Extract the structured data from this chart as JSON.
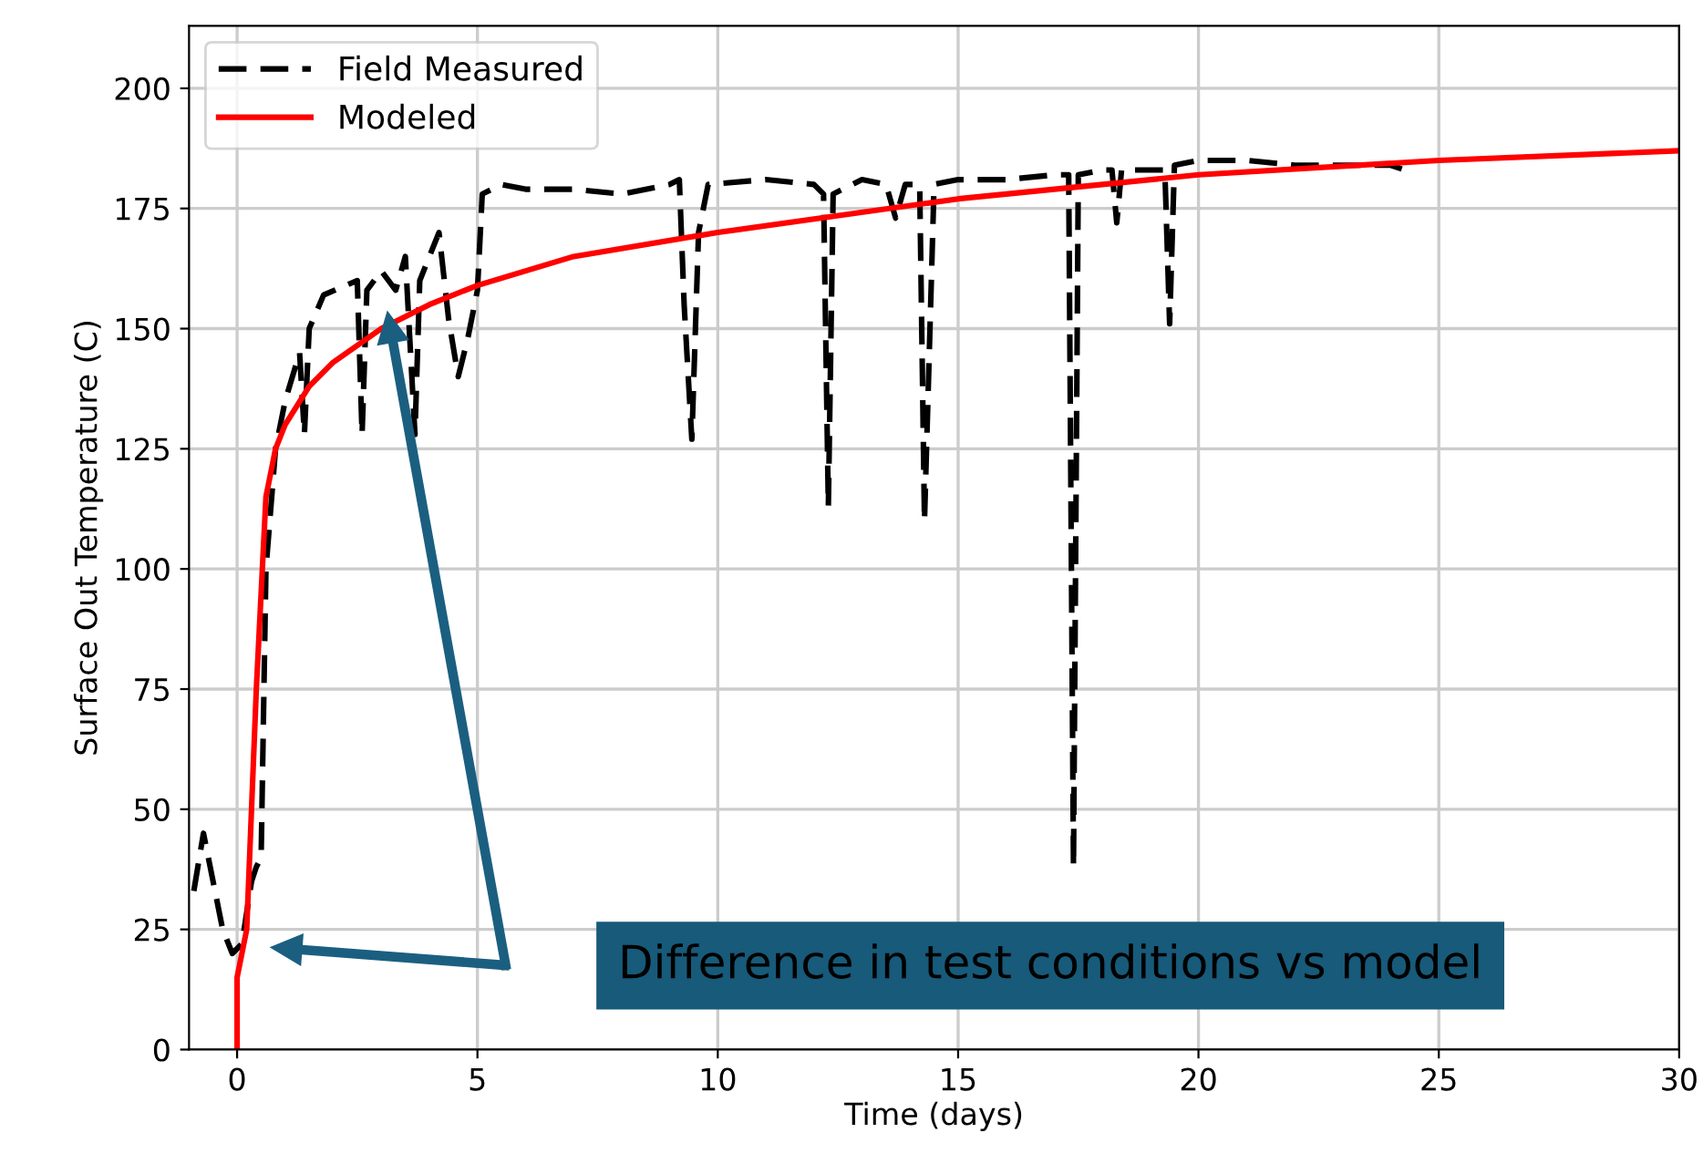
{
  "chart_data": {
    "type": "line",
    "xlabel": "Time (days)",
    "ylabel": "Surface Out Temperature (C)",
    "xlim": [
      -1,
      30
    ],
    "ylim": [
      0,
      213
    ],
    "xticks": [
      0,
      5,
      10,
      15,
      20,
      25,
      30
    ],
    "yticks": [
      0,
      25,
      50,
      75,
      100,
      125,
      150,
      175,
      200
    ],
    "grid": true,
    "legend": "top left",
    "series": [
      {
        "name": "Field Measured",
        "color": "#000000",
        "line_style": "dashed",
        "x": [
          -0.9,
          -0.7,
          -0.5,
          -0.3,
          -0.1,
          0.1,
          0.3,
          0.4,
          0.5,
          0.6,
          0.8,
          1.0,
          1.3,
          1.4,
          1.5,
          1.8,
          2.5,
          2.6,
          2.7,
          3.0,
          3.3,
          3.5,
          3.7,
          3.8,
          4.0,
          4.2,
          4.4,
          4.6,
          4.8,
          5.0,
          5.1,
          5.5,
          6,
          7,
          8,
          9,
          9.2,
          9.3,
          9.46,
          9.6,
          9.8,
          11,
          12,
          12.2,
          12.3,
          12.4,
          13,
          13.5,
          13.7,
          13.9,
          14.2,
          14.3,
          14.5,
          15,
          16,
          17,
          17.3,
          17.4,
          17.5,
          18,
          18.2,
          18.3,
          18.4,
          19.3,
          19.4,
          19.5,
          20,
          21,
          22,
          23,
          24,
          24.3
        ],
        "values": [
          33,
          45,
          35,
          25,
          20,
          22,
          35,
          38,
          40,
          100,
          125,
          135,
          145,
          128,
          150,
          157,
          160,
          128,
          158,
          162,
          158,
          165,
          128,
          160,
          165,
          170,
          152,
          140,
          148,
          158,
          178,
          180,
          179,
          179,
          178,
          180,
          181,
          155,
          127,
          170,
          180,
          181,
          180,
          178,
          113,
          178,
          181,
          180,
          173,
          180,
          180,
          110,
          180,
          181,
          181,
          182,
          182,
          38,
          182,
          183,
          183,
          172,
          183,
          183,
          151,
          184,
          185,
          185,
          184,
          184,
          184,
          183
        ]
      },
      {
        "name": "Modeled",
        "color": "#ff0000",
        "line_style": "solid",
        "x": [
          0,
          0,
          0.2,
          0.4,
          0.6,
          0.8,
          1,
          1.5,
          2,
          3,
          4,
          5,
          7,
          10,
          15,
          20,
          25,
          30
        ],
        "values": [
          0,
          15,
          25,
          75,
          115,
          125,
          130,
          138,
          143,
          150,
          155,
          159,
          165,
          170,
          177,
          182,
          185,
          187
        ]
      }
    ],
    "annotations": [
      "Difference in test conditions vs model"
    ]
  }
}
